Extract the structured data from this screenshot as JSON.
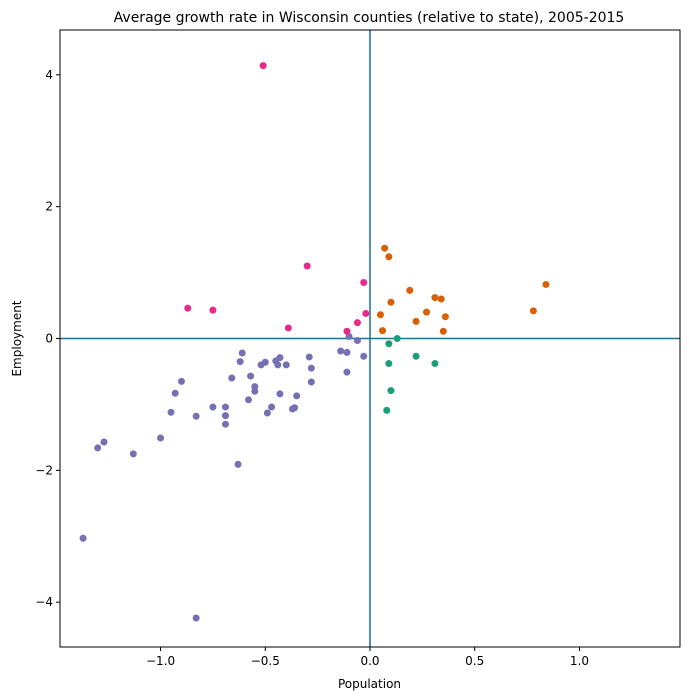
{
  "chart_data": {
    "type": "scatter",
    "title": "Average growth rate in Wisconsin counties (relative to state), 2005-2015",
    "xlabel": "Population",
    "ylabel": "Employment",
    "xlim": [
      -1.48,
      1.48
    ],
    "ylim": [
      -4.68,
      4.68
    ],
    "xticks": [
      -1.0,
      -0.5,
      0.0,
      0.5,
      1.0
    ],
    "xtick_labels": [
      "−1.0",
      "−0.5",
      "0.0",
      "0.5",
      "1.0"
    ],
    "yticks": [
      -4,
      -2,
      0,
      2,
      4
    ],
    "ytick_labels": [
      "−4",
      "−2",
      "0",
      "2",
      "4"
    ],
    "grid": false,
    "reference_lines": {
      "x": 0,
      "y": 0,
      "color": "#1f6f8f"
    },
    "colors": {
      "purple": "#7570b3",
      "pink": "#e7298a",
      "orange": "#d95f02",
      "green": "#1b9e77"
    },
    "series": [
      {
        "color": "#7570b3",
        "points": [
          [
            -1.37,
            -3.03
          ],
          [
            -1.3,
            -1.66
          ],
          [
            -1.27,
            -1.57
          ],
          [
            -1.13,
            -1.75
          ],
          [
            -1.0,
            -1.51
          ],
          [
            -0.95,
            -1.12
          ],
          [
            -0.93,
            -0.83
          ],
          [
            -0.9,
            -0.65
          ],
          [
            -0.83,
            -1.18
          ],
          [
            -0.83,
            -4.24
          ],
          [
            -0.75,
            -1.04
          ],
          [
            -0.69,
            -1.04
          ],
          [
            -0.69,
            -1.17
          ],
          [
            -0.69,
            -1.3
          ],
          [
            -0.66,
            -0.6
          ],
          [
            -0.63,
            -1.91
          ],
          [
            -0.62,
            -0.35
          ],
          [
            -0.61,
            -0.22
          ],
          [
            -0.58,
            -0.93
          ],
          [
            -0.57,
            -0.57
          ],
          [
            -0.55,
            -0.73
          ],
          [
            -0.55,
            -0.8
          ],
          [
            -0.52,
            -0.4
          ],
          [
            -0.5,
            -0.36
          ],
          [
            -0.49,
            -1.13
          ],
          [
            -0.47,
            -1.04
          ],
          [
            -0.45,
            -0.34
          ],
          [
            -0.44,
            -0.4
          ],
          [
            -0.43,
            -0.29
          ],
          [
            -0.43,
            -0.84
          ],
          [
            -0.4,
            -0.4
          ],
          [
            -0.37,
            -1.07
          ],
          [
            -0.36,
            -1.05
          ],
          [
            -0.35,
            -0.87
          ],
          [
            -0.29,
            -0.28
          ],
          [
            -0.28,
            -0.45
          ],
          [
            -0.28,
            -0.66
          ],
          [
            -0.14,
            -0.19
          ],
          [
            -0.11,
            -0.21
          ],
          [
            -0.11,
            -0.51
          ],
          [
            -0.06,
            -0.03
          ],
          [
            -0.03,
            -0.27
          ],
          [
            -0.1,
            0.03
          ]
        ]
      },
      {
        "color": "#e7298a",
        "points": [
          [
            -0.51,
            4.14
          ],
          [
            -0.87,
            0.46
          ],
          [
            -0.75,
            0.43
          ],
          [
            -0.39,
            0.16
          ],
          [
            -0.3,
            1.1
          ],
          [
            -0.11,
            0.11
          ],
          [
            -0.06,
            0.24
          ],
          [
            -0.03,
            0.85
          ],
          [
            -0.02,
            0.38
          ]
        ]
      },
      {
        "color": "#d95f02",
        "points": [
          [
            0.05,
            0.36
          ],
          [
            0.06,
            0.12
          ],
          [
            0.07,
            1.37
          ],
          [
            0.09,
            1.24
          ],
          [
            0.1,
            0.55
          ],
          [
            0.19,
            0.73
          ],
          [
            0.22,
            0.26
          ],
          [
            0.27,
            0.4
          ],
          [
            0.31,
            0.62
          ],
          [
            0.34,
            0.6
          ],
          [
            0.35,
            0.11
          ],
          [
            0.36,
            0.33
          ],
          [
            0.78,
            0.42
          ],
          [
            0.84,
            0.82
          ]
        ]
      },
      {
        "color": "#1b9e77",
        "points": [
          [
            0.08,
            -1.09
          ],
          [
            0.09,
            -0.08
          ],
          [
            0.09,
            -0.38
          ],
          [
            0.1,
            -0.79
          ],
          [
            0.13,
            0.0
          ],
          [
            0.22,
            -0.27
          ],
          [
            0.31,
            -0.38
          ]
        ]
      }
    ]
  }
}
